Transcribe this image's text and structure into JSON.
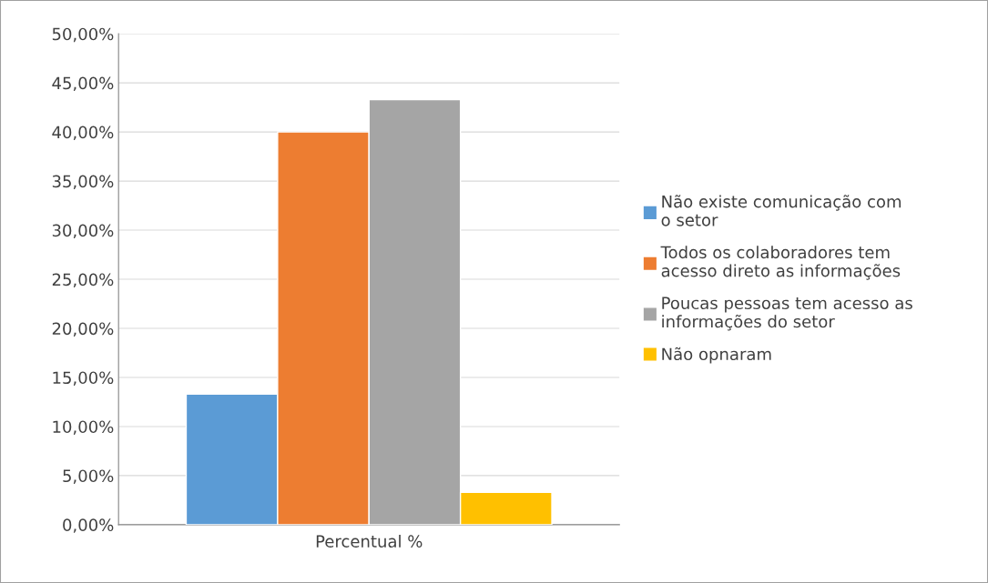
{
  "chart_data": {
    "type": "bar",
    "categories": [
      "Percentual %"
    ],
    "series": [
      {
        "name": "Não existe comunicação com\no setor",
        "color": "#5b9bd5",
        "values": [
          13.3
        ]
      },
      {
        "name": "Todos os colaboradores tem\nacesso direto as informações",
        "color": "#ed7d31",
        "values": [
          40
        ]
      },
      {
        "name": "Poucas pessoas tem acesso as\ninformações do setor",
        "color": "#a5a5a5",
        "values": [
          43.3
        ]
      },
      {
        "name": "Não opnaram",
        "color": "#ffc000",
        "values": [
          3.3
        ]
      }
    ],
    "ylim": [
      0,
      50
    ],
    "yticks": [
      {
        "value": 0,
        "label": "0,00%"
      },
      {
        "value": 5,
        "label": "5,00%"
      },
      {
        "value": 10,
        "label": "10,00%"
      },
      {
        "value": 15,
        "label": "15,00%"
      },
      {
        "value": 20,
        "label": "20,00%"
      },
      {
        "value": 25,
        "label": "25,00%"
      },
      {
        "value": 30,
        "label": "30,00%"
      },
      {
        "value": 35,
        "label": "35,00%"
      },
      {
        "value": 40,
        "label": "40,00%"
      },
      {
        "value": 45,
        "label": "45,00%"
      },
      {
        "value": 50,
        "label": "50,00%"
      }
    ],
    "grid": "y",
    "legend": "right"
  }
}
